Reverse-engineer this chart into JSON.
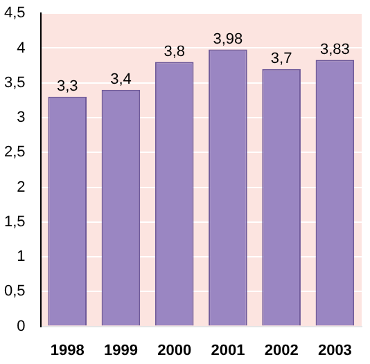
{
  "chart_data": {
    "type": "bar",
    "categories": [
      "1998",
      "1999",
      "2000",
      "2001",
      "2002",
      "2003"
    ],
    "values": [
      3.3,
      3.4,
      3.8,
      3.98,
      3.7,
      3.83
    ],
    "value_labels": [
      "3,3",
      "3,4",
      "3,8",
      "3,98",
      "3,7",
      "3,83"
    ],
    "color": "#9a86c2",
    "ylim": [
      0,
      4.5
    ],
    "yticks": [
      0,
      {
        "value": 0.5,
        "label": "0,5"
      },
      1,
      {
        "value": 1.5,
        "label": "1,5"
      },
      2,
      {
        "value": 2.5,
        "label": "2,5"
      },
      3,
      {
        "value": 3.5,
        "label": "3,5"
      },
      4,
      {
        "value": 4.5,
        "label": "4,5"
      }
    ],
    "grid": "y"
  }
}
